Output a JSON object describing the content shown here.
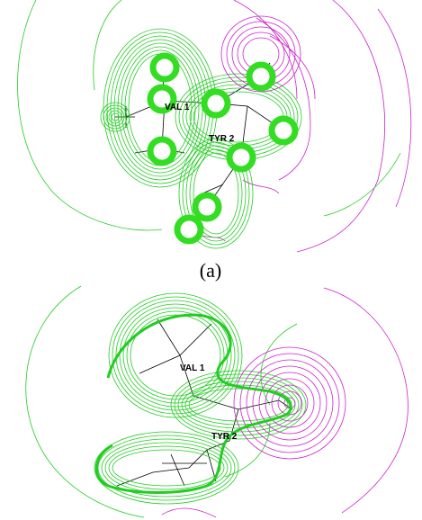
{
  "panels": [
    {
      "labels": [
        "VAL 1",
        "TYR 2"
      ],
      "caption": "(a)"
    },
    {
      "labels": [
        "VAL 1",
        "TYR 2"
      ]
    }
  ]
}
